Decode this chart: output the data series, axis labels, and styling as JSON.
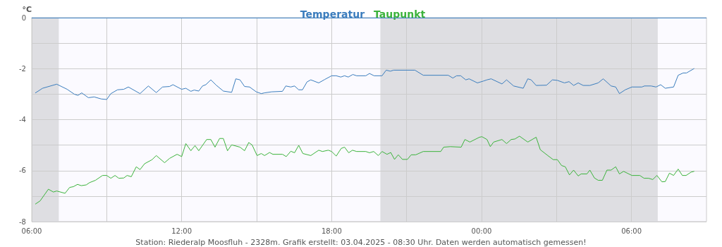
{
  "chart_data": {
    "type": "line",
    "ylabel": "°C",
    "annotations": [
      "Station: Riederalp Moosfluh - 2328m. Grafik erstellt: 03.04.2025 - 08:30 Uhr. Daten werden automatisch gemessen!"
    ],
    "xlim": [
      "2025-04-02T06:00",
      "2025-04-03T09:00"
    ],
    "xticks": [
      {
        "value": "2025-04-02T06:00",
        "label": "06:00"
      },
      {
        "value": "2025-04-02T09:00",
        "label": null
      },
      {
        "value": "2025-04-02T12:00",
        "label": "12:00"
      },
      {
        "value": "2025-04-02T15:00",
        "label": null
      },
      {
        "value": "2025-04-02T18:00",
        "label": "18:00"
      },
      {
        "value": "2025-04-02T21:00",
        "label": null
      },
      {
        "value": "2025-04-03T00:00",
        "label": "00:00"
      },
      {
        "value": "2025-04-03T03:00",
        "label": null
      },
      {
        "value": "2025-04-03T06:00",
        "label": "06:00"
      }
    ],
    "ylim": [
      -8,
      0
    ],
    "yticks": [
      -8,
      {
        "value": -7,
        "label": null
      },
      -6,
      {
        "value": -5,
        "label": null
      },
      -4,
      {
        "value": -3,
        "label": null
      },
      -2,
      {
        "value": -1,
        "label": null
      },
      0
    ],
    "grid": true,
    "legend": "top",
    "marker": "none",
    "line_style": "solid",
    "ref_lines": [
      {
        "axis": "y",
        "value": 0,
        "color": "#3a7fc1"
      }
    ],
    "bands": [
      {
        "axis": "x",
        "from": "2025-04-02T06:00",
        "to": "2025-04-02T07:05",
        "color": "#dedee2"
      },
      {
        "axis": "x",
        "from": "2025-04-02T19:57",
        "to": "2025-04-03T07:03",
        "color": "#dedee2"
      }
    ],
    "series": [
      {
        "name": "Temperatur",
        "color": "#3b7dbd",
        "x": [
          "2025-04-02T06:09",
          "2025-04-02T06:26",
          "2025-04-02T07:00",
          "2025-04-02T07:25",
          "2025-04-02T07:42",
          "2025-04-02T07:51",
          "2025-04-02T08:00",
          "2025-04-02T08:16",
          "2025-04-02T08:30",
          "2025-04-02T08:47",
          "2025-04-02T09:00",
          "2025-04-02T09:10",
          "2025-04-02T09:26",
          "2025-04-02T09:41",
          "2025-04-02T09:52",
          "2025-04-02T10:20",
          "2025-04-02T10:40",
          "2025-04-02T10:59",
          "2025-04-02T11:14",
          "2025-04-02T11:31",
          "2025-04-02T11:39",
          "2025-04-02T12:00",
          "2025-04-02T12:10",
          "2025-04-02T12:22",
          "2025-04-02T12:30",
          "2025-04-02T12:41",
          "2025-04-02T12:50",
          "2025-04-02T12:58",
          "2025-04-02T13:10",
          "2025-04-02T13:23",
          "2025-04-02T13:40",
          "2025-04-02T14:00",
          "2025-04-02T14:10",
          "2025-04-02T14:20",
          "2025-04-02T14:31",
          "2025-04-02T14:43",
          "2025-04-02T14:59",
          "2025-04-02T15:11",
          "2025-04-02T15:19",
          "2025-04-02T15:36",
          "2025-04-02T16:02",
          "2025-04-02T16:10",
          "2025-04-02T16:22",
          "2025-04-02T16:31",
          "2025-04-02T16:41",
          "2025-04-02T16:50",
          "2025-04-02T17:01",
          "2025-04-02T17:10",
          "2025-04-02T17:29",
          "2025-04-02T17:43",
          "2025-04-02T18:00",
          "2025-04-02T18:11",
          "2025-04-02T18:22",
          "2025-04-02T18:31",
          "2025-04-02T18:40",
          "2025-04-02T18:51",
          "2025-04-02T19:00",
          "2025-04-02T19:22",
          "2025-04-02T19:31",
          "2025-04-02T19:42",
          "2025-04-02T20:01",
          "2025-04-02T20:11",
          "2025-04-02T20:21",
          "2025-04-02T20:29",
          "2025-04-02T21:20",
          "2025-04-02T21:40",
          "2025-04-02T22:40",
          "2025-04-02T22:51",
          "2025-04-02T23:00",
          "2025-04-02T23:10",
          "2025-04-02T23:22",
          "2025-04-02T23:30",
          "2025-04-02T23:50",
          "2025-04-03T00:04",
          "2025-04-03T00:13",
          "2025-04-03T00:23",
          "2025-04-03T00:49",
          "2025-04-03T01:00",
          "2025-04-03T01:17",
          "2025-04-03T01:40",
          "2025-04-03T01:51",
          "2025-04-03T01:59",
          "2025-04-03T02:11",
          "2025-04-03T02:36",
          "2025-04-03T02:50",
          "2025-04-03T03:02",
          "2025-04-03T03:19",
          "2025-04-03T03:30",
          "2025-04-03T03:41",
          "2025-04-03T03:52",
          "2025-04-03T04:04",
          "2025-04-03T04:20",
          "2025-04-03T04:40",
          "2025-04-03T04:52",
          "2025-04-03T05:11",
          "2025-04-03T05:22",
          "2025-04-03T05:31",
          "2025-04-03T05:45",
          "2025-04-03T06:01",
          "2025-04-03T06:25",
          "2025-04-03T06:31",
          "2025-04-03T06:47",
          "2025-04-03T06:59",
          "2025-04-03T07:10",
          "2025-04-03T07:21",
          "2025-04-03T07:41",
          "2025-04-03T07:52",
          "2025-04-03T08:04",
          "2025-04-03T08:12",
          "2025-04-03T08:30"
        ],
        "values": [
          -2.95,
          -2.77,
          -2.61,
          -2.81,
          -3.0,
          -3.05,
          -2.95,
          -3.14,
          -3.11,
          -3.19,
          -3.21,
          -2.98,
          -2.83,
          -2.81,
          -2.72,
          -2.98,
          -2.68,
          -2.94,
          -2.72,
          -2.7,
          -2.63,
          -2.81,
          -2.77,
          -2.89,
          -2.84,
          -2.88,
          -2.68,
          -2.63,
          -2.44,
          -2.65,
          -2.88,
          -2.93,
          -2.4,
          -2.44,
          -2.7,
          -2.72,
          -2.91,
          -2.98,
          -2.95,
          -2.91,
          -2.89,
          -2.68,
          -2.72,
          -2.68,
          -2.83,
          -2.83,
          -2.52,
          -2.44,
          -2.56,
          -2.43,
          -2.28,
          -2.28,
          -2.33,
          -2.28,
          -2.33,
          -2.23,
          -2.28,
          -2.28,
          -2.19,
          -2.28,
          -2.28,
          -2.06,
          -2.1,
          -2.06,
          -2.06,
          -2.26,
          -2.26,
          -2.37,
          -2.28,
          -2.28,
          -2.44,
          -2.4,
          -2.56,
          -2.49,
          -2.44,
          -2.4,
          -2.6,
          -2.44,
          -2.68,
          -2.77,
          -2.4,
          -2.44,
          -2.66,
          -2.65,
          -2.44,
          -2.46,
          -2.56,
          -2.51,
          -2.66,
          -2.56,
          -2.66,
          -2.66,
          -2.56,
          -2.4,
          -2.68,
          -2.72,
          -2.98,
          -2.83,
          -2.72,
          -2.72,
          -2.68,
          -2.68,
          -2.72,
          -2.63,
          -2.77,
          -2.72,
          -2.26,
          -2.17,
          -2.17,
          -2.0
        ]
      },
      {
        "name": "Taupunkt",
        "color": "#3cb33c",
        "x": [
          "2025-04-02T06:09",
          "2025-04-02T06:20",
          "2025-04-02T06:40",
          "2025-04-02T06:52",
          "2025-04-02T07:00",
          "2025-04-02T07:20",
          "2025-04-02T07:31",
          "2025-04-02T07:40",
          "2025-04-02T07:50",
          "2025-04-02T07:59",
          "2025-04-02T08:11",
          "2025-04-02T08:19",
          "2025-04-02T08:33",
          "2025-04-02T08:50",
          "2025-04-02T09:00",
          "2025-04-02T09:10",
          "2025-04-02T09:20",
          "2025-04-02T09:29",
          "2025-04-02T09:41",
          "2025-04-02T09:49",
          "2025-04-02T09:59",
          "2025-04-02T10:11",
          "2025-04-02T10:20",
          "2025-04-02T10:31",
          "2025-04-02T10:49",
          "2025-04-02T10:59",
          "2025-04-02T11:19",
          "2025-04-02T11:31",
          "2025-04-02T11:49",
          "2025-04-02T12:00",
          "2025-04-02T12:10",
          "2025-04-02T12:22",
          "2025-04-02T12:32",
          "2025-04-02T12:41",
          "2025-04-02T13:00",
          "2025-04-02T13:10",
          "2025-04-02T13:20",
          "2025-04-02T13:31",
          "2025-04-02T13:40",
          "2025-04-02T13:50",
          "2025-04-02T14:00",
          "2025-04-02T14:20",
          "2025-04-02T14:31",
          "2025-04-02T14:41",
          "2025-04-02T14:49",
          "2025-04-02T15:01",
          "2025-04-02T15:11",
          "2025-04-02T15:19",
          "2025-04-02T15:31",
          "2025-04-02T15:39",
          "2025-04-02T16:02",
          "2025-04-02T16:11",
          "2025-04-02T16:22",
          "2025-04-02T16:31",
          "2025-04-02T16:41",
          "2025-04-02T16:51",
          "2025-04-02T17:10",
          "2025-04-02T17:29",
          "2025-04-02T17:38",
          "2025-04-02T17:52",
          "2025-04-02T18:00",
          "2025-04-02T18:11",
          "2025-04-02T18:23",
          "2025-04-02T18:31",
          "2025-04-02T18:41",
          "2025-04-02T18:50",
          "2025-04-02T19:00",
          "2025-04-02T19:22",
          "2025-04-02T19:31",
          "2025-04-02T19:41",
          "2025-04-02T19:52",
          "2025-04-02T20:01",
          "2025-04-02T20:13",
          "2025-04-02T20:22",
          "2025-04-02T20:31",
          "2025-04-02T20:40",
          "2025-04-02T20:50",
          "2025-04-02T21:02",
          "2025-04-02T21:11",
          "2025-04-02T21:22",
          "2025-04-02T21:40",
          "2025-04-02T22:22",
          "2025-04-02T22:29",
          "2025-04-02T22:45",
          "2025-04-02T23:11",
          "2025-04-02T23:20",
          "2025-04-02T23:32",
          "2025-04-02T23:55",
          "2025-04-03T00:01",
          "2025-04-03T00:13",
          "2025-04-03T00:21",
          "2025-04-03T00:29",
          "2025-04-03T00:49",
          "2025-04-03T01:00",
          "2025-04-03T01:11",
          "2025-04-03T01:20",
          "2025-04-03T01:31",
          "2025-04-03T01:51",
          "2025-04-03T02:11",
          "2025-04-03T02:21",
          "2025-04-03T02:39",
          "2025-04-03T02:52",
          "2025-04-03T03:02",
          "2025-04-03T03:12",
          "2025-04-03T03:21",
          "2025-04-03T03:31",
          "2025-04-03T03:41",
          "2025-04-03T03:52",
          "2025-04-03T03:59",
          "2025-04-03T04:13",
          "2025-04-03T04:20",
          "2025-04-03T04:31",
          "2025-04-03T04:40",
          "2025-04-03T04:50",
          "2025-04-03T05:01",
          "2025-04-03T05:11",
          "2025-04-03T05:22",
          "2025-04-03T05:31",
          "2025-04-03T05:41",
          "2025-04-03T06:01",
          "2025-04-03T06:20",
          "2025-04-03T06:30",
          "2025-04-03T06:41",
          "2025-04-03T06:51",
          "2025-04-03T07:01",
          "2025-04-03T07:13",
          "2025-04-03T07:21",
          "2025-04-03T07:31",
          "2025-04-03T07:41",
          "2025-04-03T07:52",
          "2025-04-03T08:02",
          "2025-04-03T08:11",
          "2025-04-03T08:23",
          "2025-04-03T08:30"
        ],
        "values": [
          -7.31,
          -7.19,
          -6.73,
          -6.84,
          -6.8,
          -6.89,
          -6.66,
          -6.63,
          -6.54,
          -6.59,
          -6.56,
          -6.47,
          -6.38,
          -6.19,
          -6.19,
          -6.3,
          -6.19,
          -6.3,
          -6.29,
          -6.19,
          -6.24,
          -5.85,
          -5.96,
          -5.73,
          -5.57,
          -5.41,
          -5.69,
          -5.52,
          -5.36,
          -5.45,
          -4.94,
          -5.22,
          -5.02,
          -5.22,
          -4.78,
          -4.78,
          -5.08,
          -4.74,
          -4.74,
          -5.22,
          -4.99,
          -5.08,
          -5.22,
          -4.9,
          -4.99,
          -5.41,
          -5.33,
          -5.41,
          -5.29,
          -5.36,
          -5.36,
          -5.45,
          -5.24,
          -5.3,
          -5.01,
          -5.33,
          -5.41,
          -5.2,
          -5.25,
          -5.2,
          -5.25,
          -5.43,
          -5.13,
          -5.08,
          -5.3,
          -5.2,
          -5.25,
          -5.25,
          -5.3,
          -5.25,
          -5.41,
          -5.25,
          -5.36,
          -5.29,
          -5.56,
          -5.38,
          -5.56,
          -5.56,
          -5.38,
          -5.38,
          -5.25,
          -5.25,
          -5.08,
          -5.06,
          -5.08,
          -4.78,
          -4.88,
          -4.69,
          -4.67,
          -4.78,
          -5.06,
          -4.88,
          -4.78,
          -4.94,
          -4.78,
          -4.76,
          -4.65,
          -4.88,
          -4.69,
          -5.18,
          -5.41,
          -5.57,
          -5.57,
          -5.8,
          -5.85,
          -6.17,
          -5.98,
          -6.21,
          -6.13,
          -6.13,
          -5.98,
          -6.29,
          -6.38,
          -6.38,
          -5.98,
          -5.98,
          -5.85,
          -6.13,
          -6.03,
          -6.19,
          -6.19,
          -6.3,
          -6.3,
          -6.35,
          -6.19,
          -6.44,
          -6.43,
          -6.1,
          -6.19,
          -5.94,
          -6.19,
          -6.19,
          -6.06,
          -6.03
        ]
      }
    ]
  }
}
